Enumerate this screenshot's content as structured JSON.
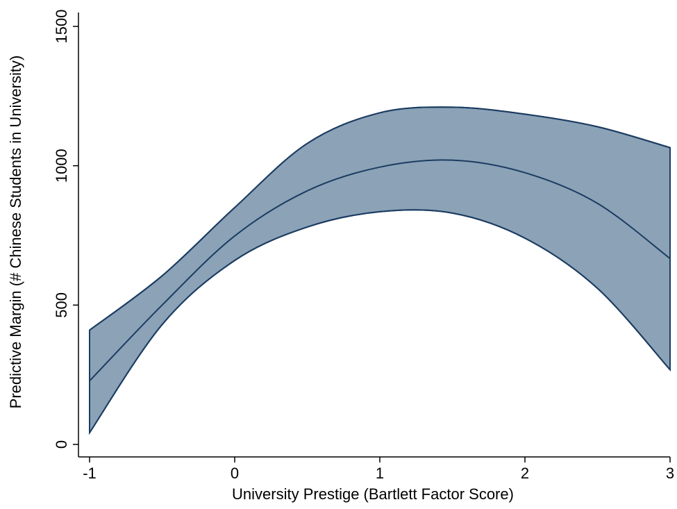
{
  "chart_data": {
    "type": "area",
    "xlabel": "University Prestige (Bartlett Factor Score)",
    "ylabel": "Predictive Margin (# Chinese Students in University)",
    "xlim": [
      -1,
      3
    ],
    "ylim": [
      0,
      1500
    ],
    "xticks": [
      -1,
      0,
      1,
      2,
      3
    ],
    "yticks": [
      0,
      500,
      1000,
      1500
    ],
    "x": [
      -1.0,
      -0.5,
      0.0,
      0.5,
      1.0,
      1.5,
      2.0,
      2.5,
      3.0
    ],
    "series": [
      {
        "role": "upper",
        "values": [
          410,
          605,
          850,
          1080,
          1190,
          1210,
          1185,
          1140,
          1065
        ]
      },
      {
        "role": "margin",
        "values": [
          228,
          500,
          748,
          910,
          995,
          1020,
          975,
          865,
          667
        ]
      },
      {
        "role": "lower",
        "values": [
          42,
          430,
          660,
          780,
          835,
          830,
          740,
          560,
          268
        ]
      }
    ],
    "grid": false,
    "colors": {
      "band_fill": "#8ba2b7",
      "line": "#1b3c61"
    }
  }
}
